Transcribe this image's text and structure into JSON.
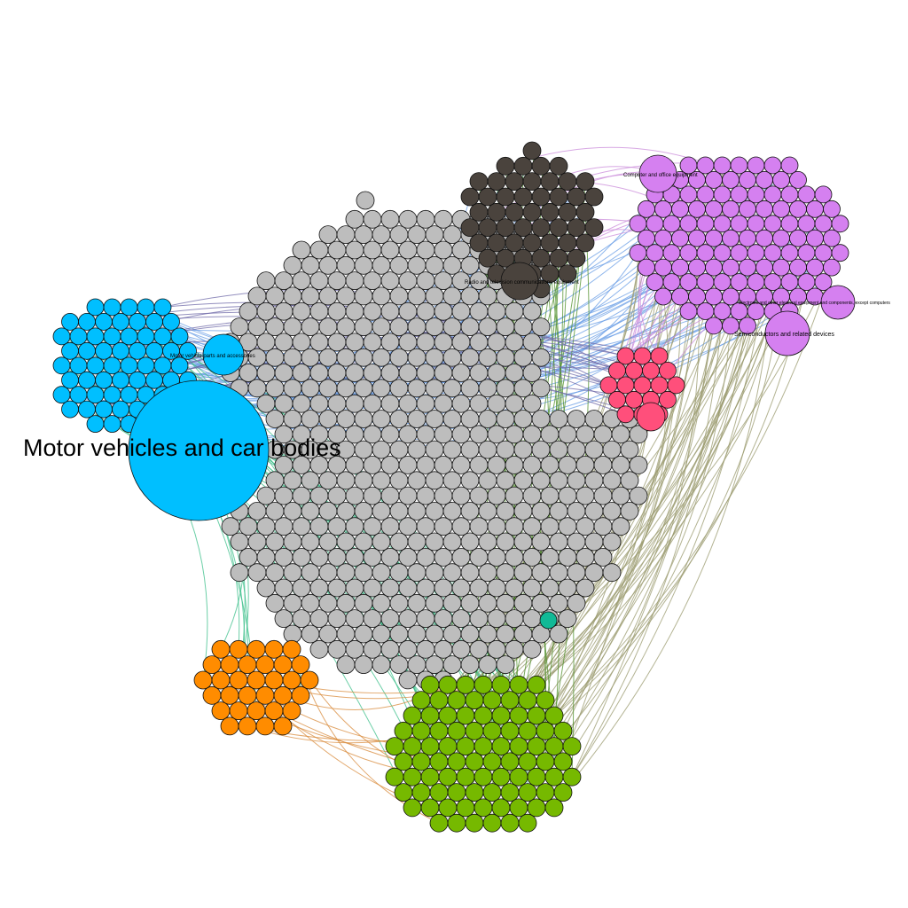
{
  "network": {
    "clusters": [
      {
        "id": "gray",
        "color": "#bdbdbd"
      },
      {
        "id": "blue",
        "color": "#00bfff"
      },
      {
        "id": "purple",
        "color": "#d580f0"
      },
      {
        "id": "dark",
        "color": "#4a433d"
      },
      {
        "id": "pink",
        "color": "#ff4f7b"
      },
      {
        "id": "orange",
        "color": "#ff8c00"
      },
      {
        "id": "green",
        "color": "#76b900"
      },
      {
        "id": "teal",
        "color": "#11b996"
      }
    ],
    "edge_colors": [
      "#6a9ee6",
      "#3bbf8a",
      "#9a9a6e",
      "#4f8f2a",
      "#c98ad9",
      "#d88a3a",
      "#6f6aa8"
    ],
    "labels": [
      {
        "id": "motor-vehicles",
        "text": "Motor vehicles and car bodies"
      },
      {
        "id": "motor-parts",
        "text": "Motor vehicle parts and accessories"
      },
      {
        "id": "computer-office",
        "text": "Computer and office equipment"
      },
      {
        "id": "radio-tv",
        "text": "Radio and television communications equipment"
      },
      {
        "id": "electronic-other",
        "text": "Electronic and other electrical equipment and components, except computers"
      },
      {
        "id": "semiconductors",
        "text": "Semiconductors and related devices"
      }
    ]
  }
}
